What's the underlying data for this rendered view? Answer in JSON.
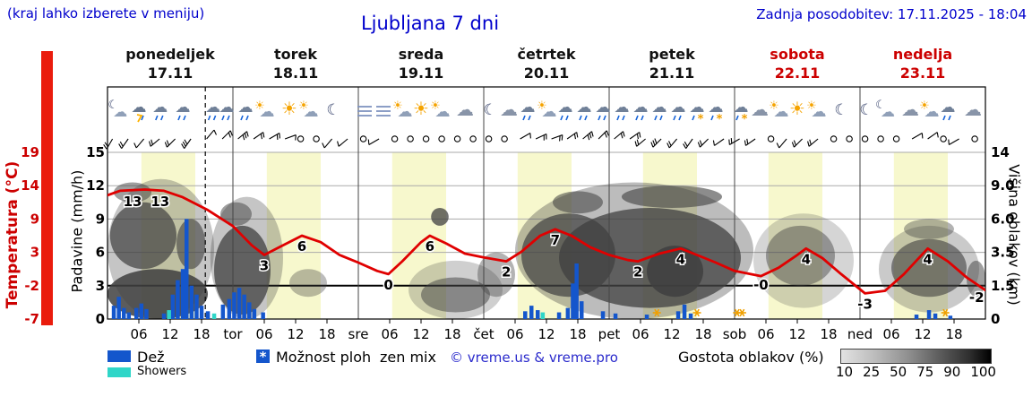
{
  "header": {
    "hint": "(kraj lahko izberete v meniju)",
    "title": "Ljubljana 7 dni",
    "updated": "Zadnja posodobitev: 17.11.2025 - 18:04"
  },
  "axes": {
    "temp_label": "Temperatura (°C)",
    "precip_label": "Padavine (mm/h)",
    "cloud_label": "Višina oblakov (km)",
    "temp_ticks": [
      "19",
      "14",
      "9",
      "3",
      "-2",
      "-7"
    ],
    "precip_ticks": [
      "15",
      "12",
      "9",
      "6",
      "3",
      "0"
    ],
    "cloud_ticks": [
      "14",
      "9.0",
      "6.0",
      "3.5",
      "1.5",
      "0"
    ],
    "hour_ticks": [
      "06",
      "12",
      "18"
    ],
    "day_abbrs": [
      "tor",
      "sre",
      "čet",
      "pet",
      "sob",
      "ned"
    ]
  },
  "days": [
    {
      "name": "ponedeljek",
      "date": "17.11",
      "weekend": false
    },
    {
      "name": "torek",
      "date": "18.11",
      "weekend": false
    },
    {
      "name": "sreda",
      "date": "19.11",
      "weekend": false
    },
    {
      "name": "četrtek",
      "date": "20.11",
      "weekend": false
    },
    {
      "name": "petek",
      "date": "21.11",
      "weekend": false
    },
    {
      "name": "sobota",
      "date": "22.11",
      "weekend": true
    },
    {
      "name": "nedelja",
      "date": "23.11",
      "weekend": true
    }
  ],
  "legend": {
    "rain": "Dež",
    "showers": "Showers",
    "chance": "Možnost ploh",
    "mix": "zen mix",
    "copyright": "© vreme.us & vreme.pro",
    "cloud_density": "Gostota oblakov (%)",
    "density_ticks": [
      "10",
      "25",
      "50",
      "75",
      "90",
      "100"
    ]
  },
  "colors": {
    "blue_text": "#0000cc",
    "red": "#cc0000",
    "temp_line": "#e00000",
    "rain_bar": "#1456cc",
    "showers_bar": "#2fd6c8",
    "day_band": "#f7f8cd",
    "cloud_gray": "#404040",
    "mix_orange": "#f0a000"
  },
  "chart_data": {
    "type": "line",
    "title": "Ljubljana 7 dni",
    "x_unit": "days, 0 = ponedeljek 17.11 00:00",
    "now_t": 0.78,
    "daylight_band": [
      0.27,
      0.7
    ],
    "temperature_c": {
      "points": [
        [
          0,
          12.3
        ],
        [
          0.1,
          13
        ],
        [
          0.3,
          13.2
        ],
        [
          0.45,
          13
        ],
        [
          0.6,
          12
        ],
        [
          0.8,
          10
        ],
        [
          1.0,
          7.5
        ],
        [
          1.15,
          4.5
        ],
        [
          1.25,
          3
        ],
        [
          1.35,
          4
        ],
        [
          1.55,
          6
        ],
        [
          1.7,
          5
        ],
        [
          1.85,
          3
        ],
        [
          2.0,
          1.8
        ],
        [
          2.15,
          0.5
        ],
        [
          2.24,
          0
        ],
        [
          2.35,
          2
        ],
        [
          2.5,
          5
        ],
        [
          2.57,
          6
        ],
        [
          2.7,
          4.8
        ],
        [
          2.85,
          3.2
        ],
        [
          3.0,
          2.6
        ],
        [
          3.18,
          2
        ],
        [
          3.3,
          3.5
        ],
        [
          3.45,
          6
        ],
        [
          3.57,
          7
        ],
        [
          3.7,
          6
        ],
        [
          3.85,
          4.2
        ],
        [
          4.0,
          3
        ],
        [
          4.15,
          2.2
        ],
        [
          4.23,
          2
        ],
        [
          4.4,
          3.2
        ],
        [
          4.57,
          4
        ],
        [
          4.7,
          3
        ],
        [
          4.85,
          1.8
        ],
        [
          5.0,
          0.5
        ],
        [
          5.21,
          -0.3
        ],
        [
          5.35,
          1
        ],
        [
          5.5,
          3
        ],
        [
          5.57,
          4
        ],
        [
          5.7,
          2.5
        ],
        [
          5.85,
          0
        ],
        [
          6.04,
          -3
        ],
        [
          6.2,
          -2.6
        ],
        [
          6.35,
          0
        ],
        [
          6.54,
          4
        ],
        [
          6.7,
          2
        ],
        [
          6.85,
          -0.5
        ],
        [
          7.0,
          -2.5
        ]
      ],
      "labels": [
        [
          0.2,
          "13"
        ],
        [
          0.42,
          "13"
        ],
        [
          1.25,
          "3"
        ],
        [
          1.55,
          "6"
        ],
        [
          2.24,
          "0"
        ],
        [
          2.57,
          "6"
        ],
        [
          3.18,
          "2"
        ],
        [
          3.57,
          "7"
        ],
        [
          4.23,
          "2"
        ],
        [
          4.57,
          "4"
        ],
        [
          5.21,
          "-0"
        ],
        [
          5.57,
          "4"
        ],
        [
          6.04,
          "-3"
        ],
        [
          6.54,
          "4"
        ],
        [
          6.93,
          "-2"
        ]
      ]
    },
    "precipitation_mm_h": {
      "rain": [
        [
          0.05,
          1.2
        ],
        [
          0.09,
          2.0
        ],
        [
          0.13,
          1.0
        ],
        [
          0.17,
          0.6
        ],
        [
          0.23,
          1.0
        ],
        [
          0.27,
          1.4
        ],
        [
          0.31,
          0.9
        ],
        [
          0.45,
          0.5
        ],
        [
          0.52,
          2.2
        ],
        [
          0.56,
          3.5
        ],
        [
          0.6,
          4.5
        ],
        [
          0.63,
          9.0
        ],
        [
          0.67,
          3.0
        ],
        [
          0.71,
          2.2
        ],
        [
          0.75,
          1.2
        ],
        [
          0.8,
          0.7
        ],
        [
          0.92,
          1.3
        ],
        [
          0.97,
          1.8
        ],
        [
          1.01,
          2.4
        ],
        [
          1.05,
          2.8
        ],
        [
          1.09,
          2.2
        ],
        [
          1.13,
          1.5
        ],
        [
          1.17,
          0.9
        ],
        [
          1.24,
          0.6
        ],
        [
          3.33,
          0.7
        ],
        [
          3.38,
          1.2
        ],
        [
          3.43,
          0.8
        ],
        [
          3.6,
          0.6
        ],
        [
          3.67,
          1.0
        ],
        [
          3.71,
          3.2
        ],
        [
          3.74,
          5.0
        ],
        [
          3.78,
          1.6
        ],
        [
          3.95,
          0.7
        ],
        [
          4.05,
          0.5
        ],
        [
          4.3,
          0.4
        ],
        [
          4.55,
          0.7
        ],
        [
          4.6,
          1.3
        ],
        [
          4.65,
          0.5
        ],
        [
          6.45,
          0.4
        ],
        [
          6.55,
          0.8
        ],
        [
          6.6,
          0.5
        ],
        [
          6.72,
          0.3
        ]
      ],
      "showers": [
        [
          0.49,
          0.8
        ],
        [
          0.85,
          0.5
        ],
        [
          3.47,
          0.6
        ]
      ]
    },
    "mix_markers_t": [
      4.38,
      4.7,
      5.02,
      5.06,
      6.68
    ],
    "clouds_t0_t1_km0_km1_opacity": [
      [
        0.0,
        0.8,
        0.0,
        2.5,
        0.85
      ],
      [
        0.02,
        0.55,
        2.5,
        7.5,
        0.7
      ],
      [
        0.05,
        0.35,
        7.5,
        9.5,
        0.5
      ],
      [
        0.55,
        0.78,
        2.5,
        6.0,
        0.6
      ],
      [
        0.0,
        0.85,
        0.0,
        10.0,
        0.3
      ],
      [
        0.85,
        1.3,
        0.2,
        5.5,
        0.75
      ],
      [
        0.9,
        1.15,
        5.5,
        7.5,
        0.5
      ],
      [
        0.82,
        1.4,
        0.0,
        8.0,
        0.3
      ],
      [
        1.45,
        1.75,
        1.0,
        2.5,
        0.35
      ],
      [
        2.58,
        2.72,
        5.5,
        7.0,
        0.75
      ],
      [
        2.5,
        3.05,
        0.3,
        2.0,
        0.5
      ],
      [
        2.4,
        3.15,
        0.0,
        3.0,
        0.25
      ],
      [
        2.95,
        3.25,
        1.0,
        3.5,
        0.4
      ],
      [
        3.3,
        4.05,
        1.0,
        6.5,
        0.7
      ],
      [
        3.55,
        3.95,
        6.5,
        8.5,
        0.55
      ],
      [
        3.6,
        5.05,
        0.5,
        7.0,
        0.75
      ],
      [
        4.1,
        4.9,
        7.0,
        9.0,
        0.6
      ],
      [
        4.3,
        4.75,
        1.0,
        4.0,
        0.85
      ],
      [
        3.25,
        5.15,
        0.0,
        9.5,
        0.35
      ],
      [
        5.25,
        5.8,
        1.5,
        5.5,
        0.45
      ],
      [
        5.15,
        5.95,
        0.5,
        6.5,
        0.22
      ],
      [
        6.25,
        6.85,
        1.0,
        4.5,
        0.6
      ],
      [
        6.35,
        6.75,
        4.5,
        6.0,
        0.4
      ],
      [
        6.15,
        6.95,
        0.3,
        5.5,
        0.28
      ],
      [
        6.85,
        7.0,
        1.0,
        3.0,
        0.5
      ]
    ],
    "icons": [
      [
        0.08,
        "mcloud"
      ],
      [
        0.25,
        "thunder"
      ],
      [
        0.42,
        "rain"
      ],
      [
        0.6,
        "rain"
      ],
      [
        0.84,
        "rain"
      ],
      [
        0.95,
        "rain"
      ],
      [
        1.1,
        "rain"
      ],
      [
        1.25,
        "psun"
      ],
      [
        1.45,
        "sun"
      ],
      [
        1.6,
        "psun"
      ],
      [
        1.8,
        "moon"
      ],
      [
        2.05,
        "fog"
      ],
      [
        2.2,
        "fog"
      ],
      [
        2.35,
        "psun"
      ],
      [
        2.5,
        "sun"
      ],
      [
        2.65,
        "psun"
      ],
      [
        2.85,
        "cloud"
      ],
      [
        3.05,
        "moon"
      ],
      [
        3.2,
        "cloud"
      ],
      [
        3.35,
        "rain"
      ],
      [
        3.5,
        "psun"
      ],
      [
        3.65,
        "rain"
      ],
      [
        3.8,
        "rain"
      ],
      [
        3.95,
        "rain"
      ],
      [
        4.1,
        "rain"
      ],
      [
        4.25,
        "rain"
      ],
      [
        4.4,
        "rain"
      ],
      [
        4.55,
        "rain"
      ],
      [
        4.7,
        "snowmix"
      ],
      [
        4.85,
        "snowmix"
      ],
      [
        5.05,
        "snowmix"
      ],
      [
        5.2,
        "cloud"
      ],
      [
        5.35,
        "psun"
      ],
      [
        5.5,
        "sun"
      ],
      [
        5.65,
        "psun"
      ],
      [
        5.85,
        "moon"
      ],
      [
        6.05,
        "moon"
      ],
      [
        6.2,
        "mcloud"
      ],
      [
        6.4,
        "cloud"
      ],
      [
        6.55,
        "psun"
      ],
      [
        6.7,
        "rain"
      ],
      [
        6.9,
        "cloud"
      ]
    ],
    "wind_t_dir_ticks": [
      [
        0.04,
        210,
        2
      ],
      [
        0.165,
        215,
        2
      ],
      [
        0.29,
        220,
        1
      ],
      [
        0.415,
        230,
        2
      ],
      [
        0.54,
        225,
        2
      ],
      [
        0.665,
        215,
        3
      ],
      [
        0.79,
        40,
        1
      ],
      [
        0.915,
        45,
        2
      ],
      [
        1.04,
        50,
        3
      ],
      [
        1.165,
        55,
        2
      ],
      [
        1.29,
        60,
        2
      ],
      [
        1.415,
        70,
        1
      ],
      [
        1.54,
        null,
        0
      ],
      [
        1.665,
        null,
        0
      ],
      [
        1.79,
        220,
        1
      ],
      [
        1.915,
        230,
        1
      ],
      [
        2.04,
        null,
        0
      ],
      [
        2.165,
        240,
        1
      ],
      [
        2.29,
        null,
        0
      ],
      [
        2.415,
        null,
        0
      ],
      [
        2.54,
        null,
        0
      ],
      [
        2.665,
        null,
        0
      ],
      [
        2.79,
        null,
        0
      ],
      [
        2.915,
        null,
        0
      ],
      [
        3.04,
        null,
        0
      ],
      [
        3.165,
        null,
        0
      ],
      [
        3.29,
        60,
        1
      ],
      [
        3.415,
        65,
        2
      ],
      [
        3.54,
        70,
        2
      ],
      [
        3.665,
        55,
        2
      ],
      [
        3.79,
        50,
        3
      ],
      [
        3.915,
        45,
        2
      ],
      [
        4.04,
        50,
        2
      ],
      [
        4.165,
        55,
        2
      ],
      [
        4.29,
        230,
        2
      ],
      [
        4.415,
        225,
        3
      ],
      [
        4.54,
        220,
        2
      ],
      [
        4.665,
        215,
        2
      ],
      [
        4.79,
        225,
        2
      ],
      [
        4.915,
        235,
        1
      ],
      [
        5.04,
        240,
        2
      ],
      [
        5.165,
        235,
        2
      ],
      [
        5.29,
        null,
        0
      ],
      [
        5.415,
        220,
        1
      ],
      [
        5.54,
        225,
        2
      ],
      [
        5.665,
        230,
        2
      ],
      [
        5.79,
        null,
        0
      ],
      [
        5.915,
        null,
        0
      ],
      [
        6.04,
        null,
        0
      ],
      [
        6.165,
        null,
        0
      ],
      [
        6.29,
        null,
        0
      ],
      [
        6.415,
        60,
        1
      ],
      [
        6.54,
        55,
        1
      ],
      [
        6.665,
        null,
        0
      ],
      [
        6.79,
        240,
        1
      ],
      [
        6.915,
        null,
        0
      ]
    ],
    "y_axis_left_precip": {
      "ticks": [
        15,
        12,
        9,
        6,
        3,
        0
      ],
      "label": "Padavine (mm/h)"
    },
    "y_axis_temp": {
      "ticks": [
        19,
        14,
        9,
        3,
        -2,
        -7
      ],
      "label": "Temperatura (°C)"
    },
    "y_axis_right_cloud_km": {
      "ticks": [
        14,
        9.0,
        6.0,
        3.5,
        1.5,
        0
      ],
      "label": "Višina oblakov (km)"
    },
    "grid": true,
    "legend_position": "bottom"
  }
}
